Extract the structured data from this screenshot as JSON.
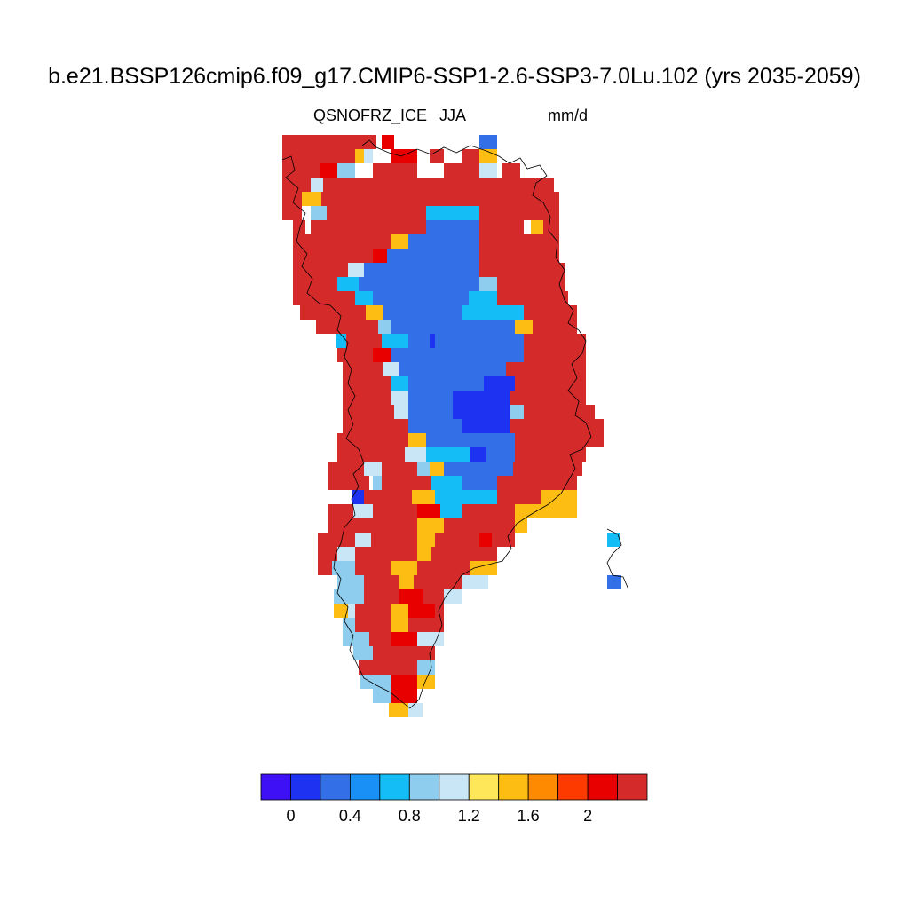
{
  "title": "b.e21.BSSP126cmip6.f09_g17.CMIP6-SSP1-2.6-SSP3-7.0Lu.102 (yrs 2035-2059)",
  "variable": "QSNOFRZ_ICE",
  "season": "JJA",
  "units": "mm/d",
  "colorbar": {
    "colors": [
      "#3e10f5",
      "#1e33f2",
      "#3370e8",
      "#1890f5",
      "#14bdf6",
      "#8fcdef",
      "#c9e6f7",
      "#fee85a",
      "#fdbd12",
      "#fd8a00",
      "#fd3b00",
      "#e80000",
      "#d42a2a"
    ],
    "tick_labels": [
      "0",
      "0.4",
      "0.8",
      "1.2",
      "1.6",
      "2"
    ],
    "tick_values": [
      0,
      0.4,
      0.8,
      1.2,
      1.6,
      2.0
    ],
    "boundaries": [
      0,
      0.2,
      0.4,
      0.6,
      0.8,
      1.0,
      1.2,
      1.4,
      1.6,
      1.8,
      2.0,
      2.2
    ],
    "first_bin_below": 0
  }
}
